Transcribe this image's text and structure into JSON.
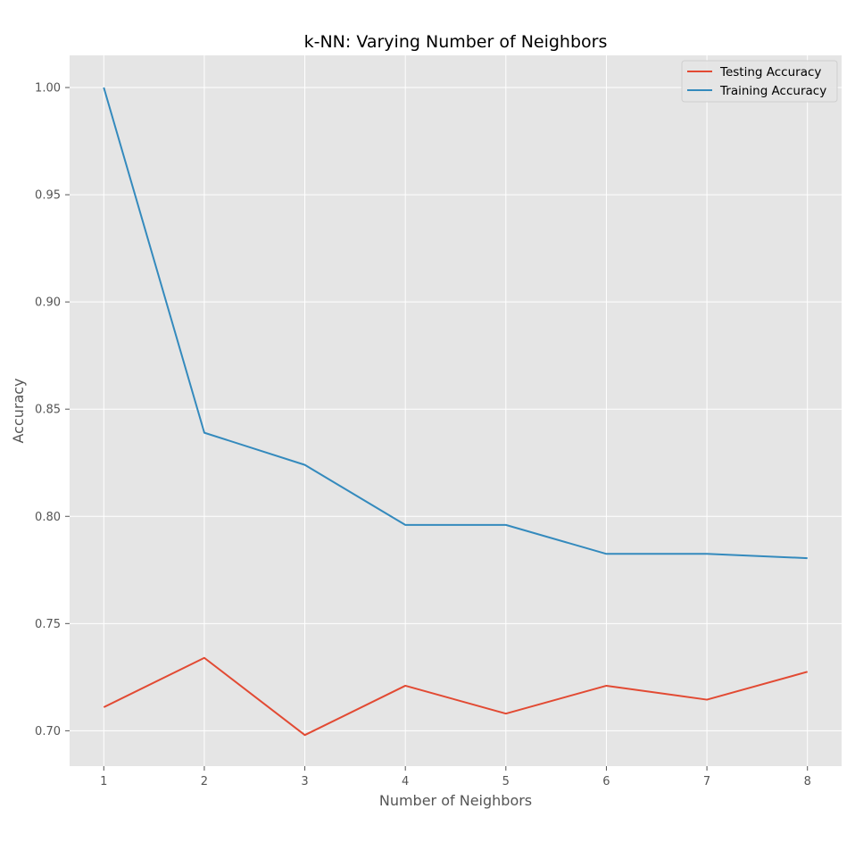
{
  "chart_data": {
    "type": "line",
    "title": "k-NN: Varying Number of Neighbors",
    "xlabel": "Number of Neighbors",
    "ylabel": "Accuracy",
    "x": [
      1,
      2,
      3,
      4,
      5,
      6,
      7,
      8
    ],
    "xticks": [
      "1",
      "2",
      "3",
      "4",
      "5",
      "6",
      "7",
      "8"
    ],
    "yticks": [
      "0.70",
      "0.75",
      "0.80",
      "0.85",
      "0.90",
      "0.95",
      "1.00"
    ],
    "xlim": [
      0.66,
      8.34
    ],
    "ylim": [
      0.6835,
      1.015
    ],
    "grid": true,
    "legend_position": "top-right",
    "series": [
      {
        "name": "Testing Accuracy",
        "color": "#E24A33",
        "values": [
          0.711,
          0.734,
          0.698,
          0.721,
          0.708,
          0.721,
          0.7145,
          0.7275
        ]
      },
      {
        "name": "Training Accuracy",
        "color": "#348ABD",
        "values": [
          1.0,
          0.839,
          0.824,
          0.796,
          0.796,
          0.7825,
          0.7825,
          0.7805
        ]
      }
    ],
    "background_color": "#E5E5E5",
    "grid_color": "#FFFFFF"
  }
}
